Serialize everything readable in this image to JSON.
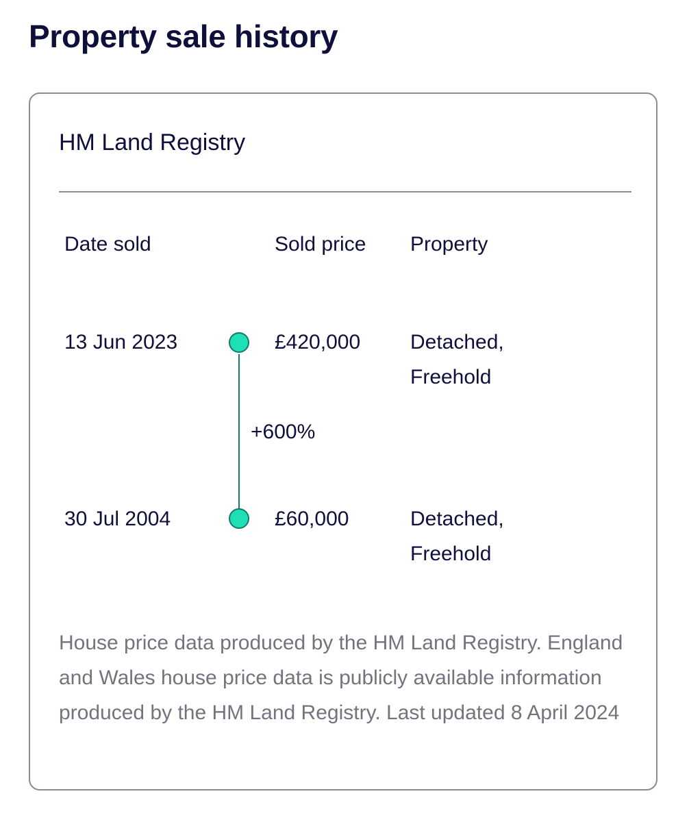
{
  "page_title": "Property sale history",
  "card": {
    "title": "HM Land Registry",
    "columns": {
      "date": "Date sold",
      "price": "Sold price",
      "property": "Property"
    },
    "sales": [
      {
        "date": "13 Jun 2023",
        "price": "£420,000",
        "property_line1": "Detached,",
        "property_line2": "Freehold"
      },
      {
        "date": "30 Jul 2004",
        "price": "£60,000",
        "property_line1": "Detached,",
        "property_line2": "Freehold"
      }
    ],
    "price_change": "+600%",
    "footnote": "House price data produced by the HM Land Registry. England and Wales house price data is publicly available information produced by the HM Land Registry. Last updated 8 April 2024"
  },
  "colors": {
    "text": "#0e0f3b",
    "muted_text": "#737380",
    "border": "#8a8a99",
    "timeline_dot": "#1ee0b4",
    "timeline_line": "#127a6c"
  }
}
